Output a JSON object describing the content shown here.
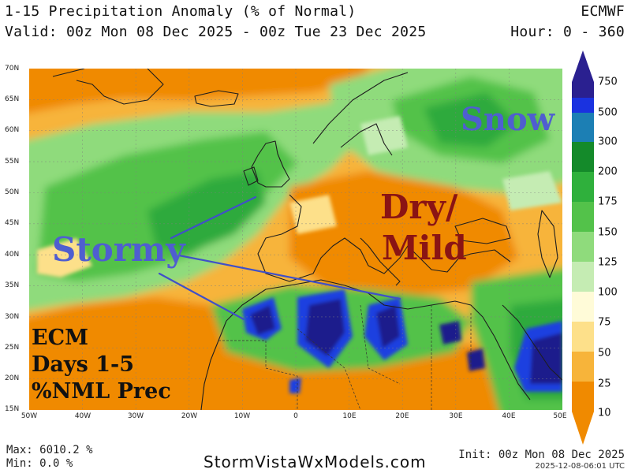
{
  "header": {
    "title": "1-15 Precipitation Anomaly (% of Normal)",
    "valid": "Valid: 00z Mon 08 Dec 2025 - 00z Tue 23 Dec 2025",
    "model": "ECMWF",
    "hours": "Hour: 0 - 360"
  },
  "map": {
    "lat_labels": [
      "70N",
      "65N",
      "60N",
      "55N",
      "50N",
      "45N",
      "40N",
      "35N",
      "30N",
      "25N",
      "20N",
      "15N"
    ],
    "lon_labels": [
      "50W",
      "40W",
      "30W",
      "20W",
      "10W",
      "0",
      "10E",
      "20E",
      "30E",
      "40E",
      "50E"
    ],
    "overlays": {
      "snow": "Snow",
      "stormy": "Stormy",
      "dry": "Dry/",
      "mild": "Mild"
    },
    "ecm_box": [
      "ECM",
      "Days 1-5",
      "%NML Prec"
    ],
    "colors": {
      "orange": "#f08a00",
      "light_orange": "#f7b43a",
      "yellow": "#fde08a",
      "cream": "#fffbd8",
      "pale_green": "#c5ecb3",
      "light_green": "#8fdb7c",
      "green": "#53c24a",
      "mid_green": "#2faa3c",
      "dark_green": "#148a2a",
      "teal": "#1c7fb4",
      "blue": "#1d3fe0",
      "navy": "#1a1a8c"
    }
  },
  "colorbar": {
    "labels": [
      "750",
      "500",
      "300",
      "200",
      "175",
      "150",
      "125",
      "100",
      "75",
      "50",
      "25",
      "10"
    ]
  },
  "footer": {
    "max": "Max: 6010.2 %",
    "min": "Min: 0.0 %",
    "site": "StormVistaWxModels.com",
    "init": "Init: 00z Mon 08 Dec 2025",
    "stamp": "2025-12-08-06:01 UTC"
  }
}
